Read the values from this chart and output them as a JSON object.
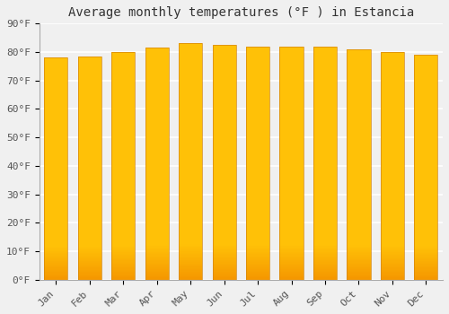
{
  "title": "Average monthly temperatures (°F ) in Estancia",
  "categories": [
    "Jan",
    "Feb",
    "Mar",
    "Apr",
    "May",
    "Jun",
    "Jul",
    "Aug",
    "Sep",
    "Oct",
    "Nov",
    "Dec"
  ],
  "values": [
    78,
    78.5,
    80,
    81.5,
    83,
    82.5,
    82,
    82,
    82,
    81,
    80,
    79
  ],
  "bar_color_light": "#FFC107",
  "bar_color_dark": "#F59700",
  "background_color": "#f0f0f0",
  "plot_bg_color": "#f0f0f0",
  "ylim": [
    0,
    90
  ],
  "yticks": [
    0,
    10,
    20,
    30,
    40,
    50,
    60,
    70,
    80,
    90
  ],
  "ytick_labels": [
    "0°F",
    "10°F",
    "20°F",
    "30°F",
    "40°F",
    "50°F",
    "60°F",
    "70°F",
    "80°F",
    "90°F"
  ],
  "title_fontsize": 10,
  "tick_fontsize": 8,
  "grid_color": "#ffffff",
  "spine_color": "#aaaaaa",
  "bar_width": 0.7,
  "bar_edge_color": "#d4850a"
}
